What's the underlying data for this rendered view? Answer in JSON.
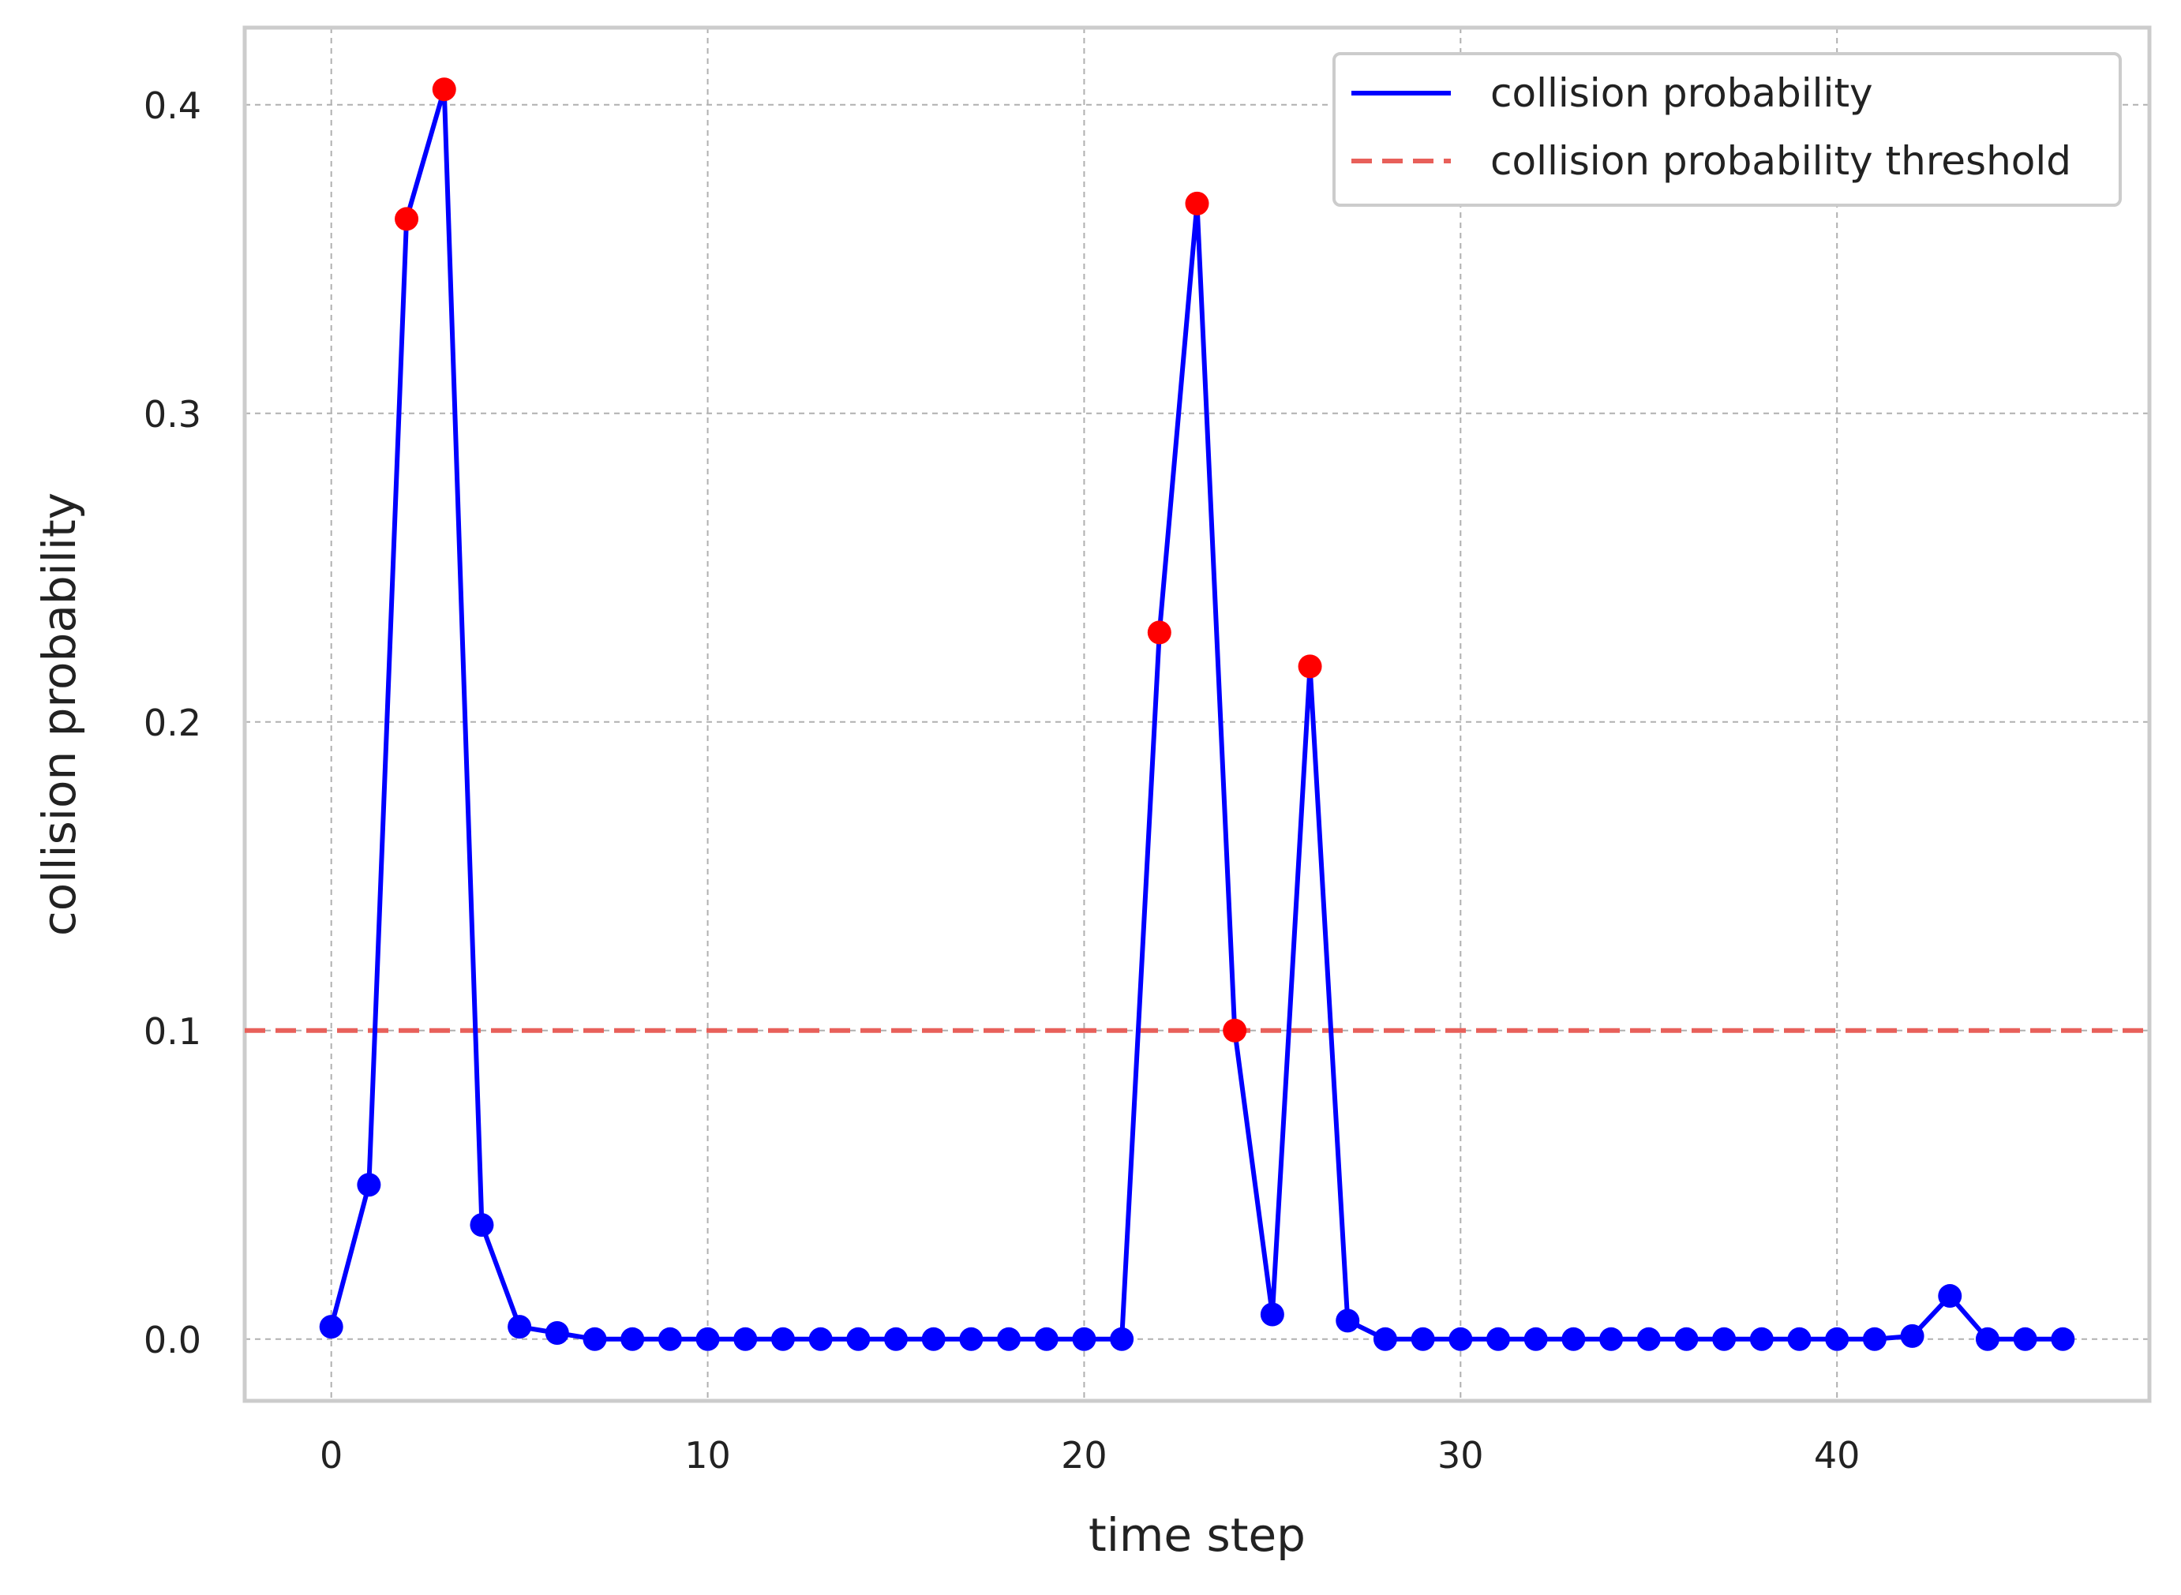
{
  "chart_data": {
    "type": "line",
    "xlabel": "time step",
    "ylabel": "collision probability",
    "xlim": [
      -2.3,
      48.3
    ],
    "ylim": [
      -0.02,
      0.425
    ],
    "xticks": [
      0,
      10,
      20,
      30,
      40
    ],
    "xtick_labels": [
      "0",
      "10",
      "20",
      "30",
      "40"
    ],
    "yticks": [
      0.0,
      0.1,
      0.2,
      0.3,
      0.4
    ],
    "ytick_labels": [
      "0.0",
      "0.1",
      "0.2",
      "0.3",
      "0.4"
    ],
    "grid": true,
    "legend_position": "top-right",
    "series": [
      {
        "name": "collision probability",
        "color": "#0000ff",
        "style": "solid",
        "x": [
          0,
          1,
          2,
          3,
          4,
          5,
          6,
          7,
          8,
          9,
          10,
          11,
          12,
          13,
          14,
          15,
          16,
          17,
          18,
          19,
          20,
          21,
          22,
          23,
          24,
          25,
          26,
          27,
          28,
          29,
          30,
          31,
          32,
          33,
          34,
          35,
          36,
          37,
          38,
          39,
          40,
          41,
          42,
          43,
          44,
          45,
          46
        ],
        "values": [
          0.004,
          0.05,
          0.363,
          0.405,
          0.037,
          0.004,
          0.002,
          0.0,
          0.0,
          0.0,
          0.0,
          0.0,
          0.0,
          0.0,
          0.0,
          0.0,
          0.0,
          0.0,
          0.0,
          0.0,
          0.0,
          0.0,
          0.229,
          0.368,
          0.1,
          0.008,
          0.218,
          0.006,
          0.0,
          0.0,
          0.0,
          0.0,
          0.0,
          0.0,
          0.0,
          0.0,
          0.0,
          0.0,
          0.0,
          0.0,
          0.0,
          0.0,
          0.001,
          0.014,
          0.0,
          0.0,
          0.0
        ]
      },
      {
        "name": "collision probability threshold",
        "color": "#e8605a",
        "style": "dashed",
        "y": 0.1
      }
    ],
    "highlighted_points": {
      "color": "#ff0000",
      "x": [
        2,
        3,
        22,
        23,
        24,
        26
      ]
    },
    "marker_color": "#0000ff"
  }
}
